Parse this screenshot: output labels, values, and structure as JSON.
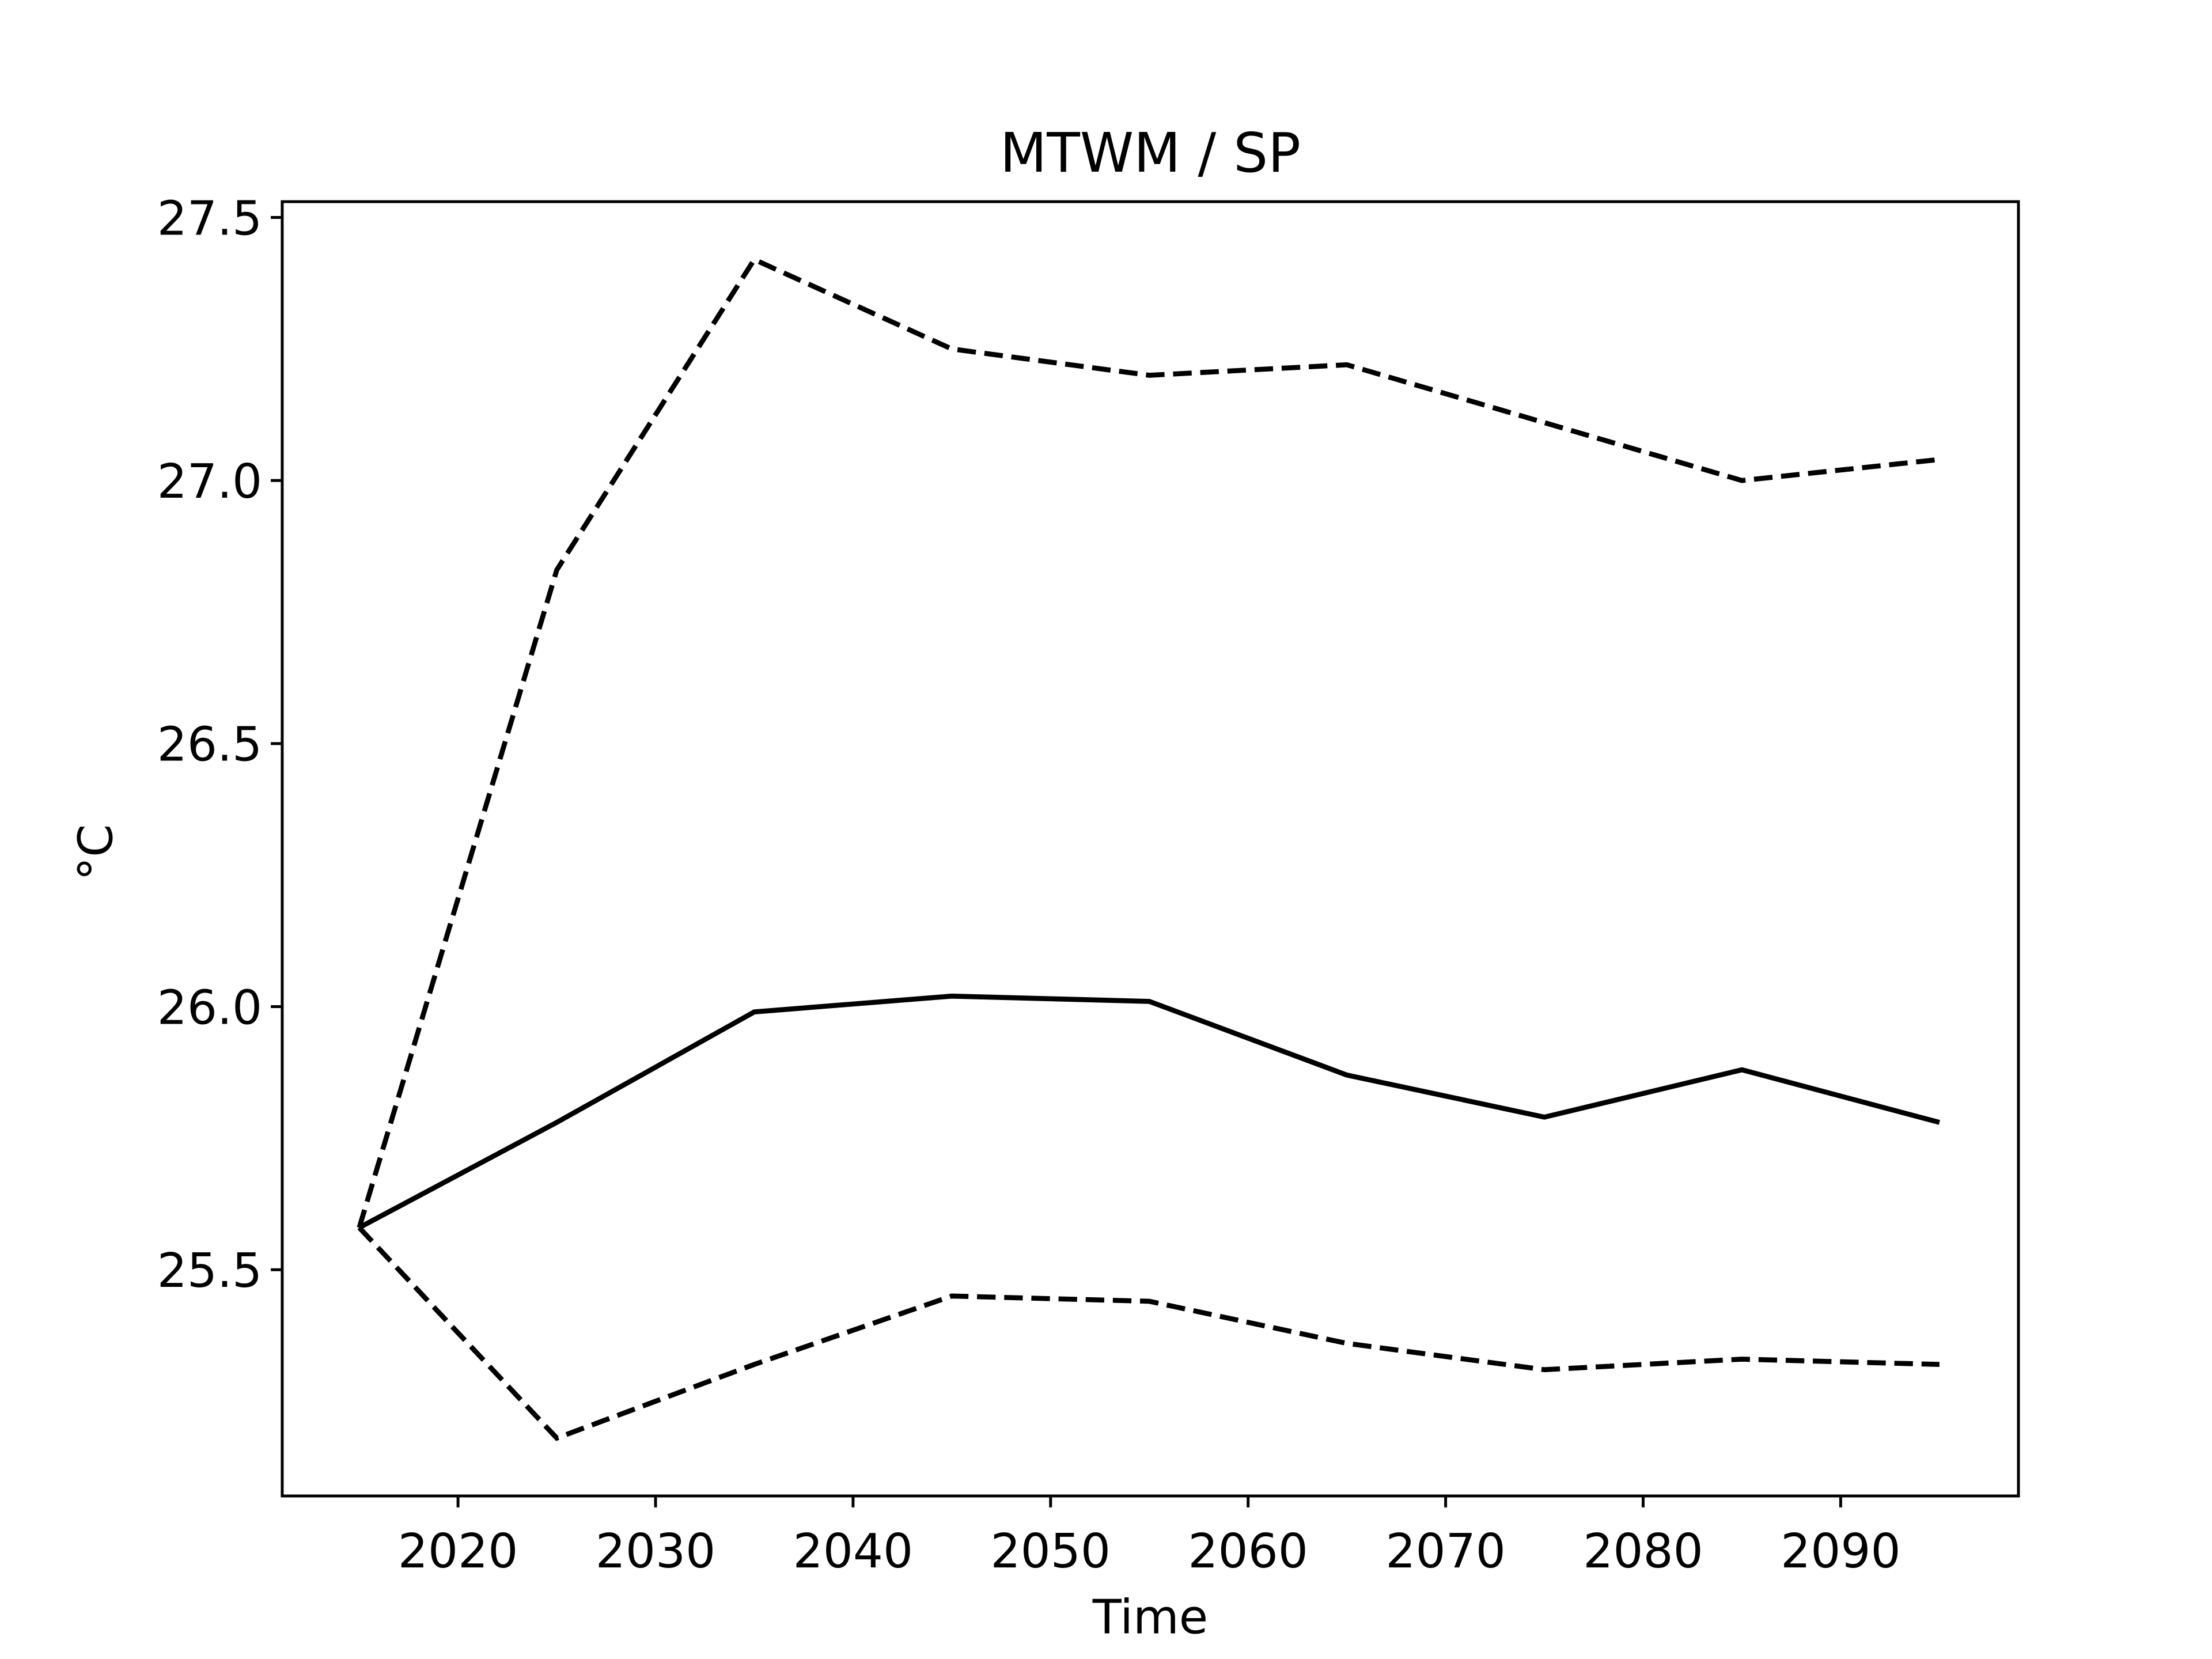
{
  "chart_data": {
    "type": "line",
    "title": "MTWM / SP",
    "xlabel": "Time",
    "ylabel": "°C",
    "x": [
      2015,
      2025,
      2035,
      2045,
      2055,
      2065,
      2075,
      2085,
      2095
    ],
    "series": [
      {
        "color": "#000000",
        "linestyle": "solid",
        "values": [
          25.58,
          25.78,
          25.99,
          26.02,
          26.01,
          25.87,
          25.79,
          25.88,
          25.78
        ]
      },
      {
        "color": "#000000",
        "linestyle": "dashed",
        "values": [
          25.58,
          26.83,
          27.42,
          27.25,
          27.2,
          27.22,
          27.11,
          27.0,
          27.04
        ]
      },
      {
        "color": "#000000",
        "linestyle": "dashed",
        "values": [
          25.58,
          25.18,
          25.32,
          25.45,
          25.44,
          25.36,
          25.31,
          25.33,
          25.32
        ]
      }
    ],
    "xlim": [
      2011.1,
      2099
    ],
    "xticks": [
      2020,
      2030,
      2040,
      2050,
      2060,
      2070,
      2080,
      2090
    ],
    "ylim": [
      25.07,
      27.53
    ],
    "yticks": [
      25.5,
      {
        "value": 26,
        "label": "26.0"
      },
      26.5,
      {
        "value": 27,
        "label": "27.0"
      },
      27.5
    ],
    "grid": false
  }
}
